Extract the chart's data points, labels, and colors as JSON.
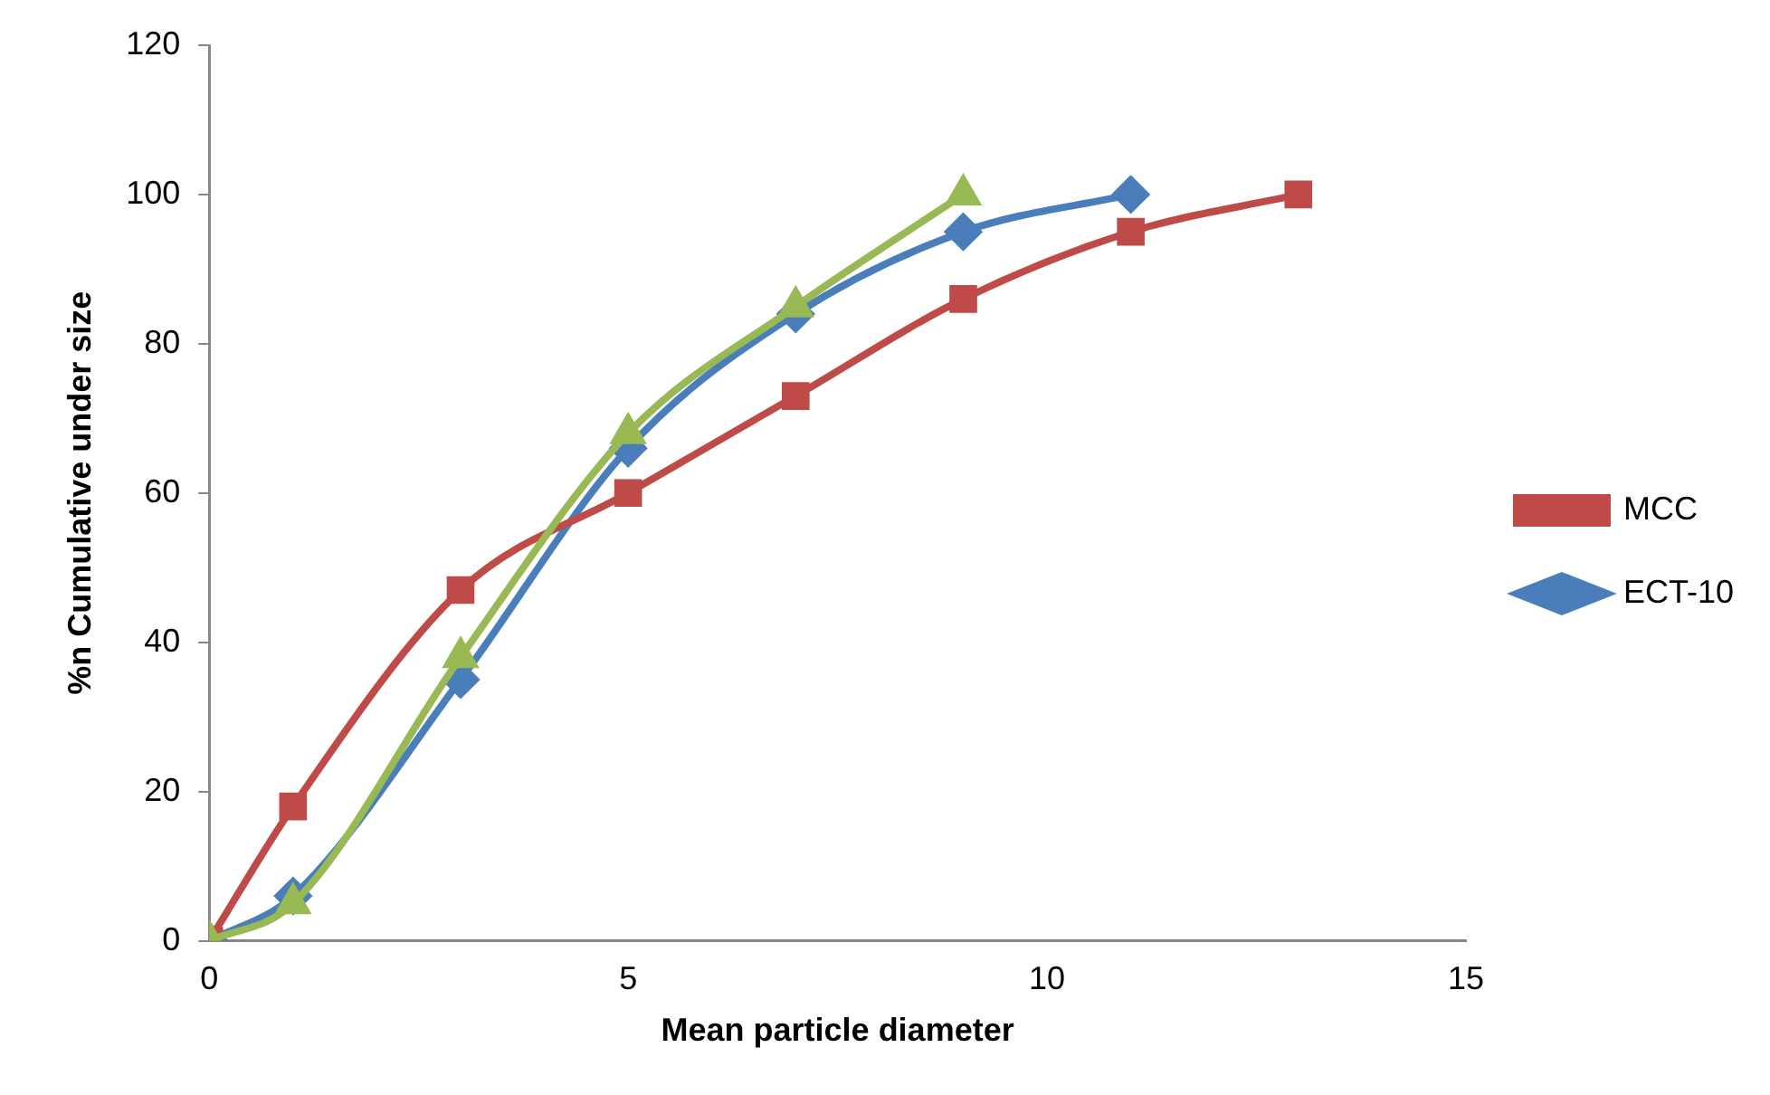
{
  "chart_data": {
    "type": "line",
    "xlabel": "Mean particle diameter",
    "ylabel": "%n Cumulative under size",
    "xlim": [
      0,
      15
    ],
    "xticks": [
      0,
      5,
      10,
      15
    ],
    "ylim": [
      0,
      120
    ],
    "yticks": [
      0,
      20,
      40,
      60,
      80,
      100,
      120
    ],
    "grid": false,
    "legend": "right",
    "series": [
      {
        "name": "ECT-10",
        "color": "#4a7ebb",
        "marker": "diamond",
        "x": [
          0,
          1,
          3,
          5,
          7,
          9,
          11
        ],
        "values": [
          0,
          6,
          35,
          66,
          84,
          95,
          100
        ]
      },
      {
        "name": "MCC",
        "color": "#be4b48",
        "marker": "square",
        "x": [
          0,
          1,
          3,
          5,
          7,
          9,
          11,
          13
        ],
        "values": [
          0,
          18,
          47,
          60,
          73,
          86,
          95,
          100
        ]
      },
      {
        "color": "#98b954",
        "marker": "triangle",
        "x": [
          0,
          1,
          3,
          5,
          7,
          9
        ],
        "values": [
          0,
          5,
          38,
          68,
          85,
          100
        ]
      }
    ]
  }
}
